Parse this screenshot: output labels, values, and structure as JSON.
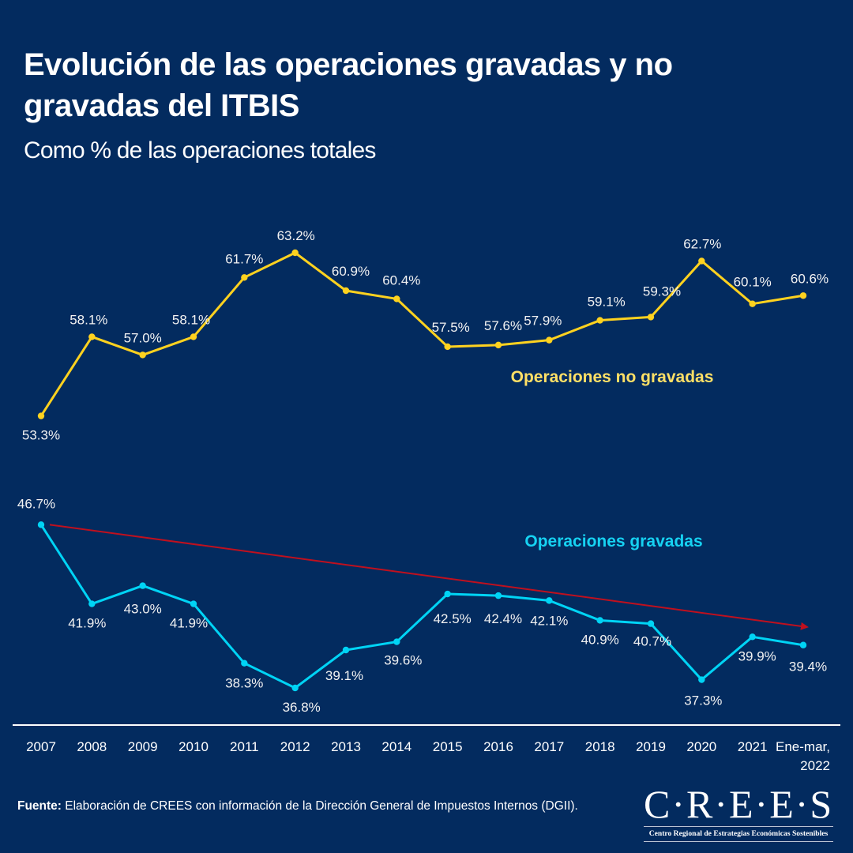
{
  "header": {
    "title": "Evolución de las operaciones gravadas y no gravadas del ITBIS",
    "subtitle": "Como %  de las operaciones totales"
  },
  "chart_data": {
    "type": "line",
    "title": "Evolución de las operaciones gravadas y no gravadas del ITBIS",
    "subtitle": "Como % de las operaciones totales",
    "xlabel": "",
    "ylabel": "",
    "grid": false,
    "categories": [
      "2007",
      "2008",
      "2009",
      "2010",
      "2011",
      "2012",
      "2013",
      "2014",
      "2015",
      "2016",
      "2017",
      "2018",
      "2019",
      "2020",
      "2021",
      "Ene-mar, 2022"
    ],
    "category_lines": [
      [
        "2007"
      ],
      [
        "2008"
      ],
      [
        "2009"
      ],
      [
        "2010"
      ],
      [
        "2011"
      ],
      [
        "2012"
      ],
      [
        "2013"
      ],
      [
        "2014"
      ],
      [
        "2015"
      ],
      [
        "2016"
      ],
      [
        "2017"
      ],
      [
        "2018"
      ],
      [
        "2019"
      ],
      [
        "2020"
      ],
      [
        "2021"
      ],
      [
        "Ene-mar,",
        "2022"
      ]
    ],
    "ylim": [
      36.8,
      63.2
    ],
    "value_suffix": "%",
    "series": [
      {
        "name": "Operaciones no gravadas",
        "color": "#ffd21f",
        "label_color": "#ffe066",
        "values": [
          53.3,
          58.1,
          57.0,
          58.1,
          61.7,
          63.2,
          60.9,
          60.4,
          57.5,
          57.6,
          57.9,
          59.1,
          59.3,
          62.7,
          60.1,
          60.6
        ],
        "labels": [
          "53.3%",
          "58.1%",
          "57.0%",
          "58.1%",
          "61.7%",
          "63.2%",
          "60.9%",
          "60.4%",
          "57.5%",
          "57.6%",
          "57.9%",
          "59.1%",
          "59.3%",
          "62.7%",
          "60.1%",
          "60.6%"
        ]
      },
      {
        "name": "Operaciones gravadas",
        "color": "#00d4f5",
        "label_color": "#16d2f2",
        "values": [
          46.7,
          41.9,
          43.0,
          41.9,
          38.3,
          36.8,
          39.1,
          39.6,
          42.5,
          42.4,
          42.1,
          40.9,
          40.7,
          37.3,
          39.9,
          39.4
        ],
        "labels": [
          "46.7%",
          "41.9%",
          "43.0%",
          "41.9%",
          "38.3%",
          "36.8%",
          "39.1%",
          "39.6%",
          "42.5%",
          "42.4%",
          "42.1%",
          "40.9%",
          "40.7%",
          "37.3%",
          "39.9%",
          "39.4%"
        ]
      }
    ],
    "annotations": [
      {
        "type": "trend-arrow",
        "color": "#c0101e",
        "from_category": "2007",
        "from_value": 46.7,
        "to_category": "Ene-mar, 2022",
        "to_value": 40.5,
        "meaning": "declining trend of Operaciones gravadas"
      }
    ]
  },
  "footer": {
    "source_label": "Fuente:",
    "source_text": " Elaboración de CREES con información de la Dirección General de Impuestos Internos (DGII).",
    "logo_text": "C·R·E·E·S",
    "logo_subtitle": "Centro Regional de Estrategias Económicas Sostenibles"
  },
  "colors": {
    "background": "#032b5f",
    "axis": "#ffffff"
  }
}
